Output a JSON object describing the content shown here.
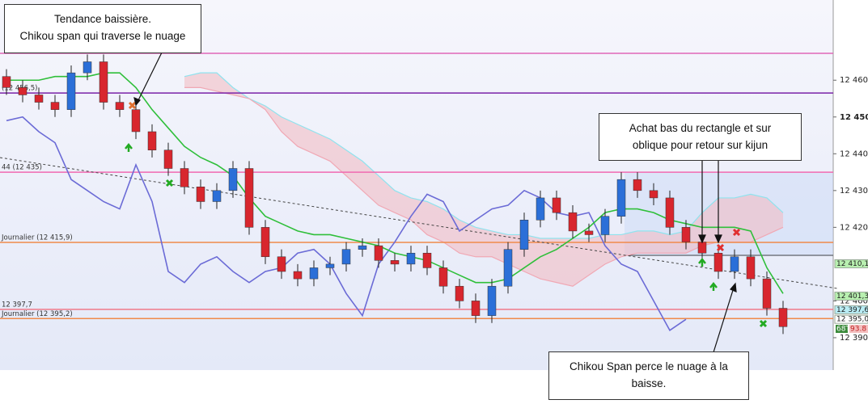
{
  "chart_data": {
    "type": "candlestick",
    "ylim": [
      12381.2,
      12481.8
    ],
    "yticks": [
      {
        "value": 12460,
        "label": "12 460"
      },
      {
        "value": 12450,
        "label": "12 450"
      },
      {
        "value": 12440,
        "label": "12 440"
      },
      {
        "value": 12430,
        "label": "12 430"
      },
      {
        "value": 12420,
        "label": "12 420"
      },
      {
        "value": 12400,
        "label": "12 400"
      },
      {
        "value": 12390,
        "label": "12 390"
      }
    ],
    "up_color": "#2b6fd8",
    "down_color": "#d8262e",
    "open": [
      12461,
      12458,
      12456,
      12454,
      12452,
      12462,
      12465,
      12454,
      12452,
      12446,
      12441,
      12436,
      12431,
      12427,
      12430,
      12436,
      12420,
      12412,
      12408,
      12406,
      12409,
      12410,
      12414,
      12415,
      12411,
      12410,
      12413,
      12409,
      12404,
      12400,
      12396,
      12404,
      12414,
      12422,
      12428,
      12424,
      12419,
      12418,
      12423,
      12433,
      12430,
      12428,
      12420,
      12416,
      12413,
      12408,
      12412,
      12406,
      12398
    ],
    "high": [
      12463,
      12460,
      12458,
      12456,
      12464,
      12467,
      12467,
      12456,
      12454,
      12448,
      12443,
      12438,
      12433,
      12432,
      12438,
      12438,
      12422,
      12414,
      12410,
      12411,
      12412,
      12416,
      12417,
      12417,
      12413,
      12415,
      12415,
      12411,
      12406,
      12402,
      12406,
      12416,
      12424,
      12430,
      12430,
      12426,
      12421,
      12425,
      12435,
      12435,
      12432,
      12430,
      12422,
      12418,
      12415,
      12414,
      12414,
      12408,
      12400
    ],
    "low": [
      12456,
      12454,
      12452,
      12450,
      12450,
      12460,
      12452,
      12450,
      12444,
      12439,
      12434,
      12429,
      12425,
      12425,
      12428,
      12418,
      12410,
      12406,
      12404,
      12404,
      12407,
      12408,
      12412,
      12409,
      12408,
      12408,
      12407,
      12402,
      12398,
      12394,
      12394,
      12402,
      12412,
      12420,
      12422,
      12417,
      12416,
      12416,
      12421,
      12428,
      12426,
      12418,
      12414,
      12411,
      12406,
      12406,
      12404,
      12396,
      12391
    ],
    "close": [
      12458,
      12456,
      12454,
      12452,
      12462,
      12465,
      12454,
      12452,
      12446,
      12441,
      12436,
      12431,
      12427,
      12430,
      12436,
      12420,
      12412,
      12408,
      12406,
      12409,
      12410,
      12414,
      12415,
      12411,
      12410,
      12413,
      12409,
      12404,
      12400,
      12396,
      12404,
      12414,
      12422,
      12428,
      12424,
      12419,
      12418,
      12423,
      12433,
      12430,
      12428,
      12420,
      12416,
      12413,
      12408,
      12412,
      12406,
      12398,
      12393
    ],
    "kijun": {
      "color": "#2fbf3a",
      "values": [
        12460,
        12460,
        12460,
        12461,
        12461,
        12461,
        12462,
        12462,
        12458,
        12452,
        12447,
        12442,
        12439,
        12437,
        12434,
        12428,
        12423,
        12421,
        12419,
        12418,
        12418,
        12417,
        12416,
        12415,
        12413,
        12412,
        12411,
        12409,
        12407,
        12405,
        12405,
        12406,
        12409,
        12412,
        12414,
        12417,
        12420,
        12424,
        12425,
        12425,
        12424,
        12422,
        12421,
        12420,
        12420,
        12420,
        12419,
        12409,
        12402
      ]
    },
    "chikou": {
      "color": "#6b6bd6",
      "values": [
        12449,
        12450,
        12446,
        12443,
        12433,
        12430,
        12427,
        12425,
        12437,
        12427,
        12408,
        12405,
        12410,
        12412,
        12408,
        12405,
        12408,
        12409,
        12413,
        12414,
        12410,
        12402,
        12396,
        12410,
        12416,
        12423,
        12429,
        12427,
        12419,
        12422,
        12425,
        12426,
        12430,
        12428,
        12424,
        12423,
        12424,
        12415,
        12410,
        12408,
        12400,
        12392,
        12395,
        null,
        null,
        null,
        null,
        null,
        null
      ]
    },
    "cloud": {
      "color": "#f2b8c0",
      "span_a_color": "#8fe3ee",
      "span_b_color": "#f0a8b4",
      "span_a": [
        null,
        null,
        null,
        null,
        null,
        null,
        null,
        null,
        null,
        null,
        null,
        12461,
        12462,
        12462,
        12458,
        12455,
        12453,
        12450,
        12448,
        12446,
        12444,
        12441,
        12438,
        12434,
        12430,
        12428,
        12427,
        12425,
        12422,
        12420,
        12419,
        12418,
        12418,
        12417,
        12417,
        12417,
        12417,
        12418,
        12418,
        12419,
        12419,
        12418,
        12419,
        12424,
        12428,
        12428,
        12429,
        12428,
        12424
      ],
      "span_b": [
        null,
        null,
        null,
        null,
        null,
        null,
        null,
        null,
        null,
        null,
        null,
        12458,
        12458,
        12457,
        12456,
        12455,
        12452,
        12446,
        12442,
        12440,
        12438,
        12434,
        12430,
        12426,
        12424,
        12422,
        12418,
        12416,
        12413,
        12412,
        12412,
        12410,
        12408,
        12406,
        12405,
        12404,
        12407,
        12410,
        12412,
        12413,
        12413,
        12413,
        12413,
        12415,
        12416,
        12416,
        12416,
        12418,
        12420
      ]
    },
    "levels": [
      {
        "value": 12467.3,
        "color": "#e066b8"
      },
      {
        "value": 12456.5,
        "color": "#7a22a8",
        "label": "(12 456,5)"
      },
      {
        "value": 12435,
        "color": "#f06ab0",
        "label": "44 (12 435)"
      },
      {
        "value": 12415.9,
        "color": "#f08a4a",
        "label": "Journalier (12 415,9)"
      },
      {
        "value": 12397.7,
        "color": "#f07a8a",
        "label": "12 397,7"
      },
      {
        "value": 12395.2,
        "color": "#f08a4a",
        "label": "Journalier (12 395,2)"
      }
    ],
    "price_tags": [
      {
        "value": 12410.1,
        "label": "12 410,1",
        "color": "#b8f0b0"
      },
      {
        "value": 12401.3,
        "label": "12 401,3",
        "color": "#b8f0b0"
      },
      {
        "value": 12397.6,
        "label": "12 397,6",
        "color": "#b8ecf4"
      },
      {
        "value": 12395.0,
        "label": "12 395,0",
        "color": "#ffffff"
      }
    ],
    "side_labels": [
      "68T",
      "93.8"
    ]
  },
  "annotations": [
    {
      "lines": [
        "Tendance baissière.",
        "Chikou span qui traverse le nuage"
      ]
    },
    {
      "lines": [
        "Achat bas du rectangle et sur",
        "oblique pour retour sur kijun"
      ]
    },
    {
      "lines": [
        "Chikou Span perce le nuage à la",
        "baisse."
      ]
    }
  ]
}
